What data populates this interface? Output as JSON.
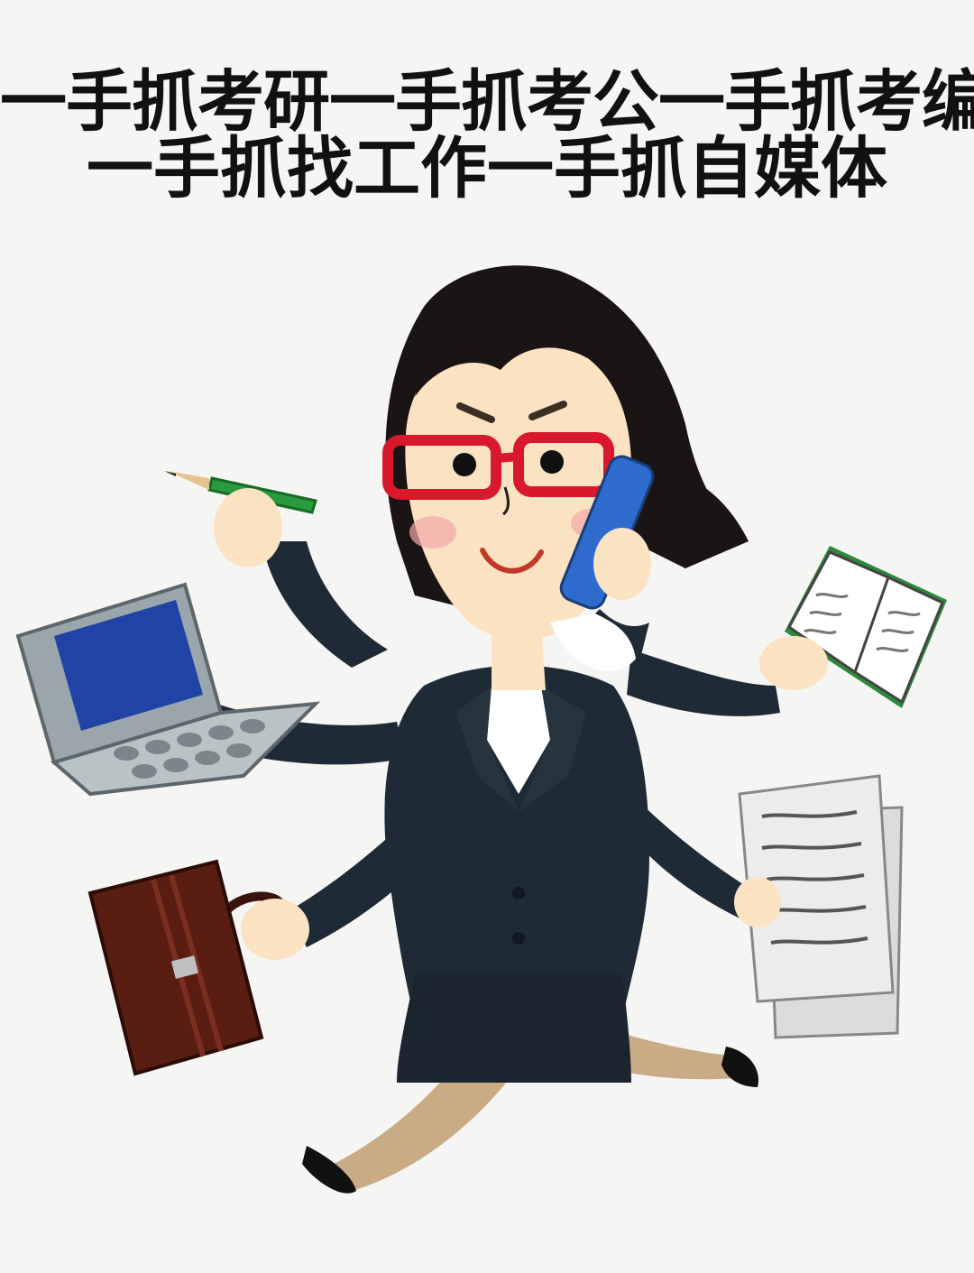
{
  "caption": {
    "line1": "一手抓考研一手抓考公一手抓考编",
    "line2": "一手抓找工作一手抓自媒体"
  },
  "illustration": {
    "subject": "businesswoman-multitasking",
    "objects": [
      "pencil-icon",
      "laptop-icon",
      "phone-icon",
      "book-icon",
      "briefcase-icon",
      "documents-icon"
    ]
  },
  "colors": {
    "background": "#f5f5f3",
    "text": "#111111",
    "suit": "#1e2b36",
    "hair": "#1a1414",
    "skin": "#fbe2c2",
    "glasses": "#d8182b",
    "phone": "#2f6bcc",
    "pencil": "#2a9a3e",
    "briefcase": "#5a1d12",
    "laptop": "#9aa6ab",
    "laptop_screen": "#1f44a5",
    "book_cover": "#2c8a3a",
    "paper": "#ececec",
    "legs": "#c9ac86"
  }
}
